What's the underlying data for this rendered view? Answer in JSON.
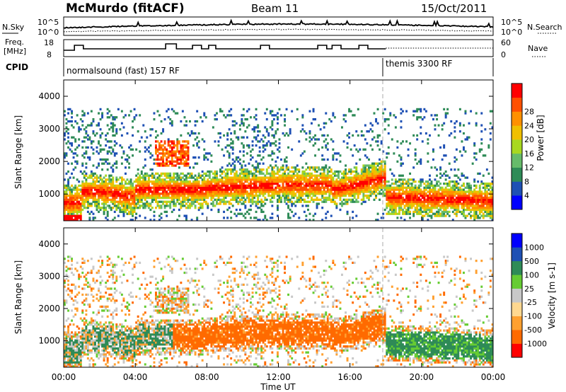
{
  "header": {
    "station": "McMurdo (fitACF)",
    "beam": "Beam 11",
    "date": "15/Oct/2011"
  },
  "noise_panel": {
    "left_label": "N.Sky",
    "right_label": "N.Search",
    "left_tick_top": "10^5",
    "left_tick_bottom": "10^0",
    "right_tick_top": "10^5",
    "right_tick_bottom": "10^0"
  },
  "freq_panel": {
    "left_label_line1": "Freq.",
    "left_label_line2": "[MHz]",
    "left_tick_top": "18",
    "left_tick_bottom": "8",
    "right_label": "Nave",
    "right_tick_top": "60",
    "right_tick_bottom": "0"
  },
  "cpid_panel": {
    "label": "CPID",
    "mode_1": "normalsound (fast) 157 RF",
    "mode_2": "themis 3300 RF"
  },
  "colors": {
    "power_scale": [
      "#0000ff",
      "#1e50b4",
      "#2e8b57",
      "#66bb6a",
      "#a8d820",
      "#f0c000",
      "#ff9000",
      "#ff5000",
      "#ff0000"
    ],
    "velocity_scale": [
      "#ff0000",
      "#ff6a00",
      "#ffa030",
      "#ffd890",
      "#c8c8c8",
      "#66cc33",
      "#2e8b57",
      "#1e50b4",
      "#0000ff"
    ]
  },
  "chart_data": [
    {
      "type": "heatmap",
      "title": "Power",
      "ylabel": "Slant Range [km]",
      "ylim": [
        180,
        4500
      ],
      "yticks": [
        "1000",
        "2000",
        "3000",
        "4000"
      ],
      "colorbar_label": "Power [dB]",
      "colorbar_ticks": [
        "4",
        "8",
        "12",
        "16",
        "20",
        "24",
        "28"
      ],
      "description_of_distribution": "intense echoes 600-1600 km across most of the day, scattered weak echoes up to 3500 km"
    },
    {
      "type": "heatmap",
      "title": "Velocity",
      "ylabel": "Slant Range [km]",
      "ylim": [
        180,
        4500
      ],
      "yticks": [
        "1000",
        "2000",
        "3000",
        "4000"
      ],
      "colorbar_label": "Velocity [m s-1]",
      "colorbar_ticks": [
        "1000",
        "500",
        "100",
        "25",
        "-25",
        "-100",
        "-500",
        "-1000"
      ]
    }
  ],
  "x_axis": {
    "label": "Time UT",
    "ticks": [
      "00:00",
      "04:00",
      "08:00",
      "12:00",
      "16:00",
      "20:00",
      "00:00"
    ],
    "range_hours": [
      0,
      24
    ]
  }
}
